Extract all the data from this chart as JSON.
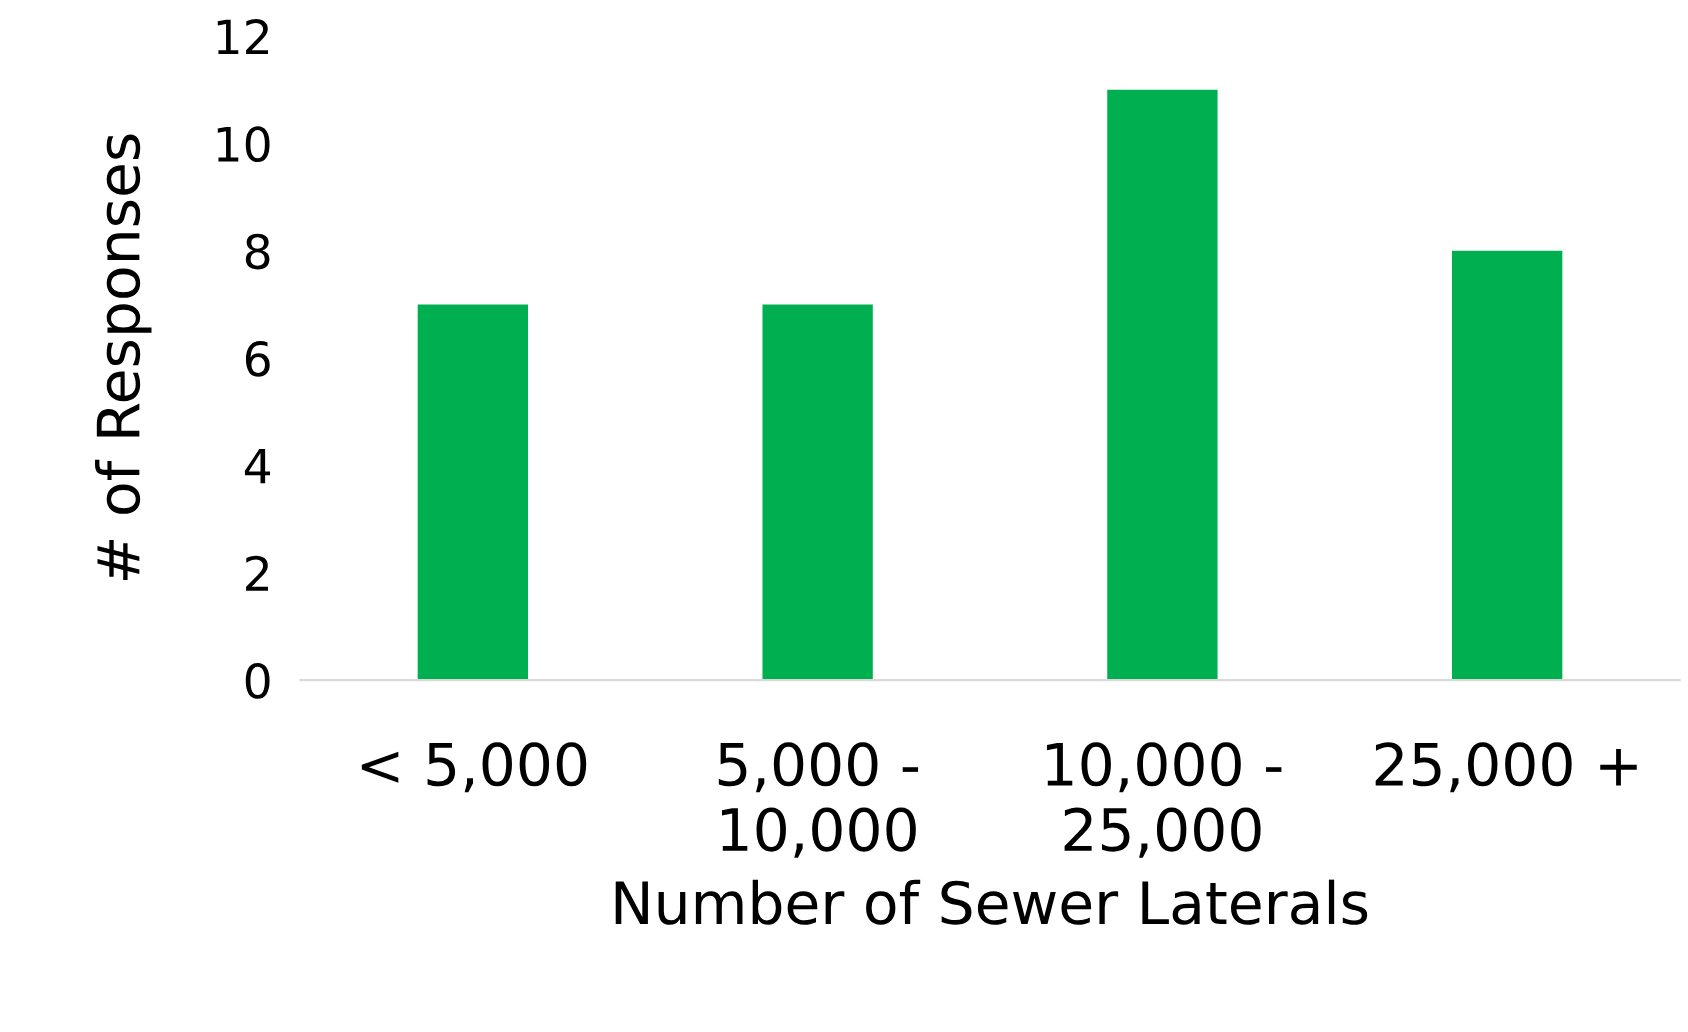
{
  "chart_data": {
    "type": "bar",
    "xlabel": "Number of Sewer Laterals",
    "ylabel": "# of Responses",
    "categories": [
      "< 5,000",
      "5,000 -\n10,000",
      "10,000 -\n25,000",
      "25,000 +"
    ],
    "values": [
      7,
      7,
      11,
      8
    ],
    "color": "#00b050",
    "ylim": [
      0,
      12
    ],
    "yticks": [
      0,
      2,
      4,
      6,
      8,
      10,
      12
    ],
    "grid": false,
    "legend": false
  }
}
